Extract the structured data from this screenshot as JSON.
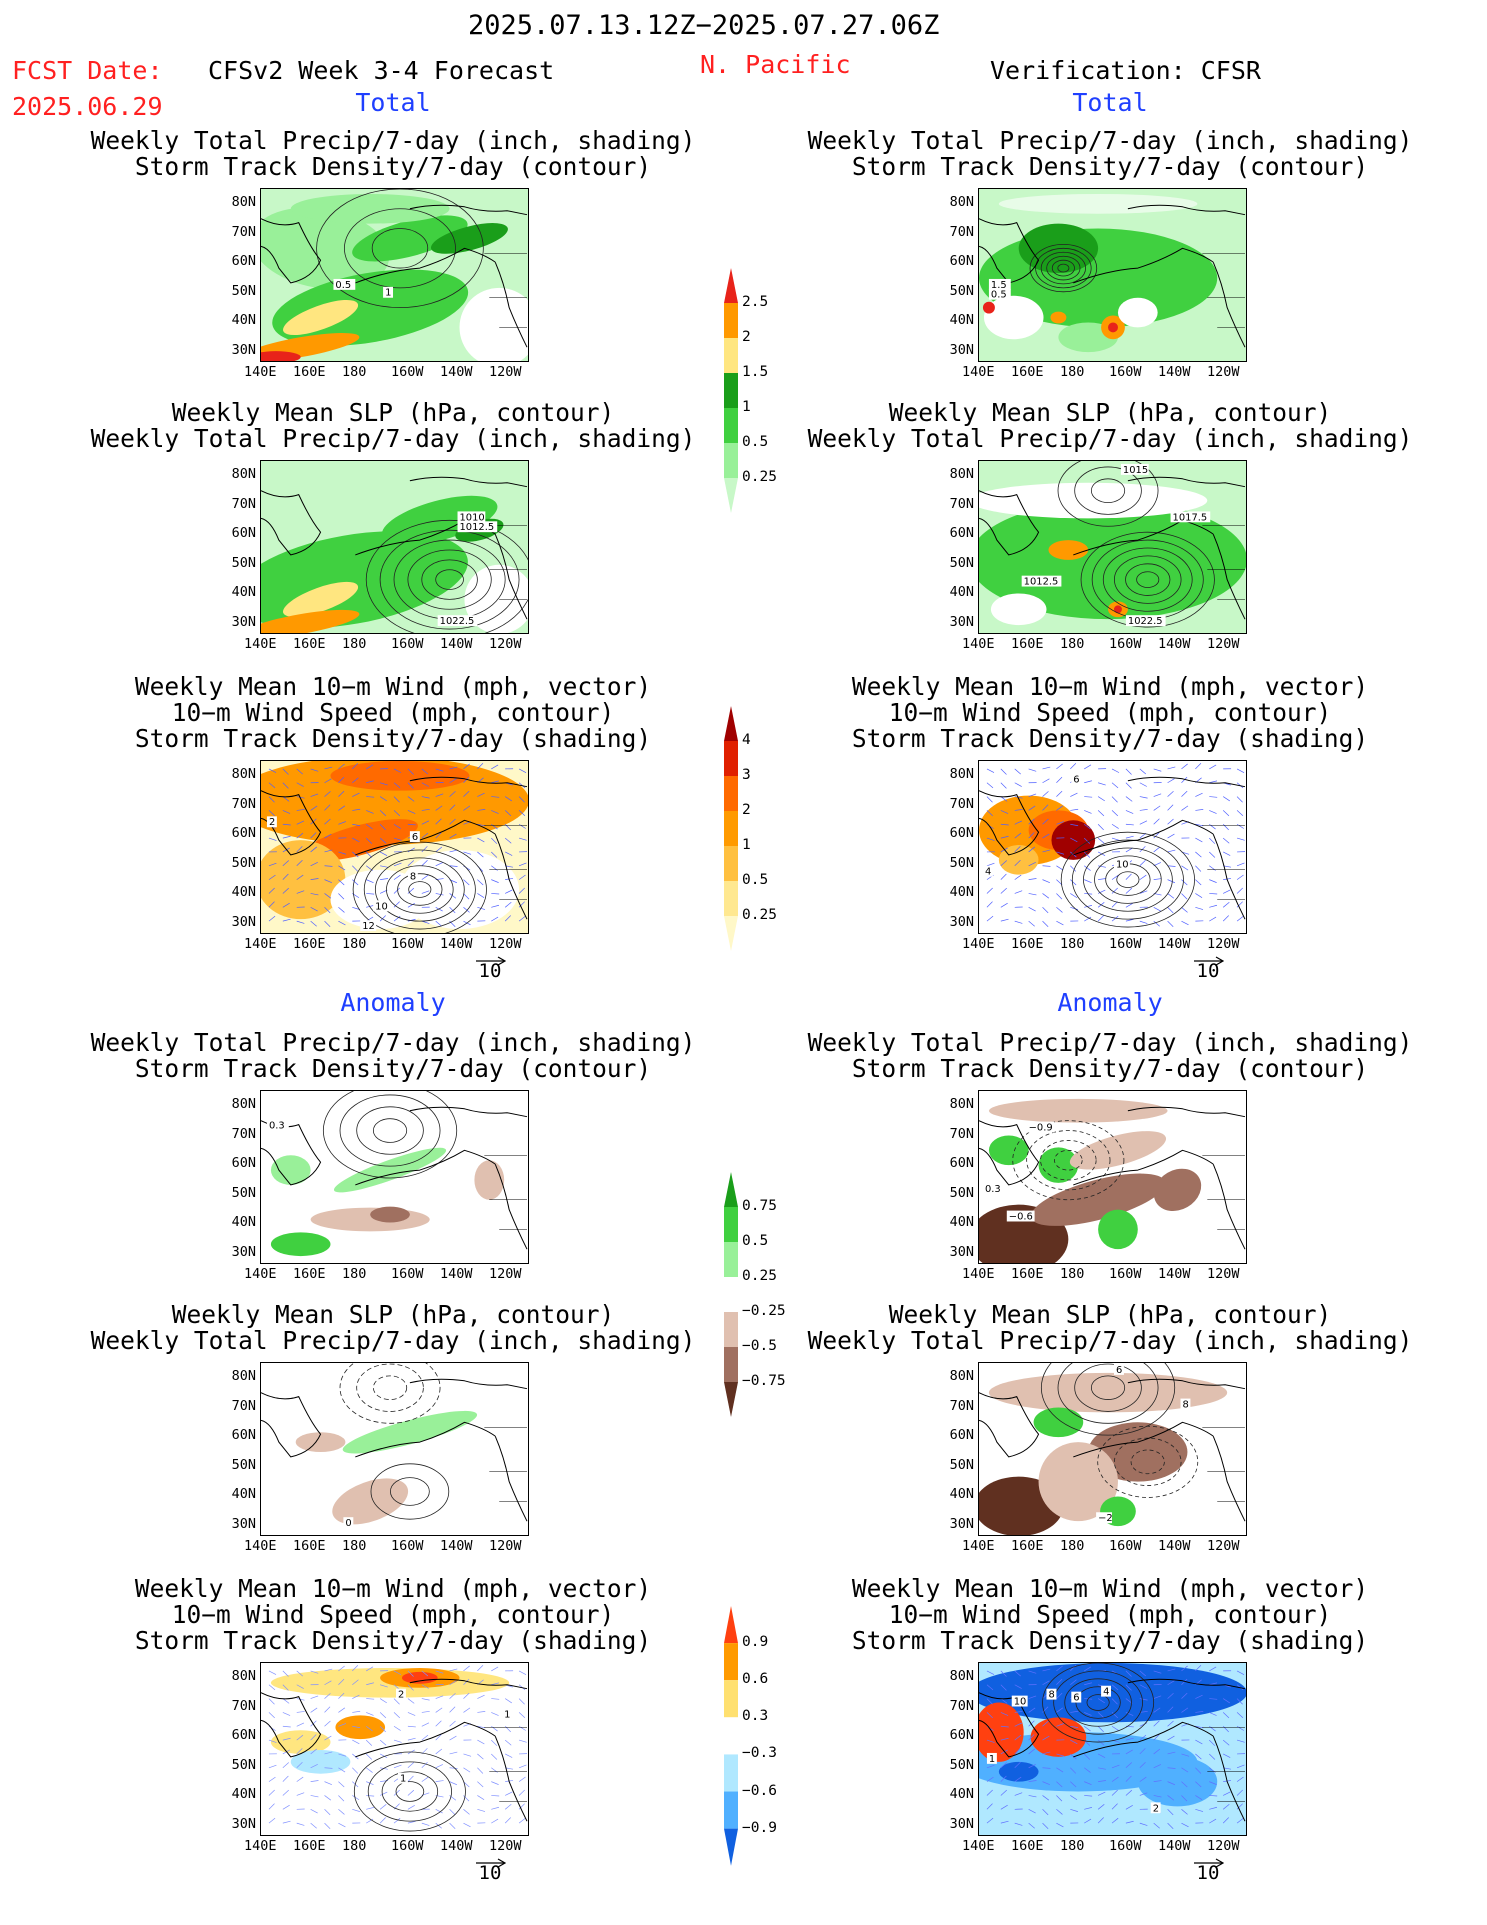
{
  "header": {
    "date_range": "2025.07.13.12Z−2025.07.27.06Z",
    "fcst_label": "FCST Date:",
    "fcst_date": "2025.06.29",
    "model_title": "CFSv2 Week 3-4 Forecast",
    "region": "N. Pacific",
    "verification": "Verification: CFSR"
  },
  "sections": {
    "total": "Total",
    "anomaly": "Anomaly"
  },
  "panel_titles": {
    "precip_storm": [
      "Weekly Total Precip/7-day (inch, shading)",
      "Storm Track Density/7-day (contour)"
    ],
    "slp_precip": [
      "Weekly Mean SLP (hPa, contour)",
      "Weekly Total Precip/7-day (inch, shading)"
    ],
    "wind": [
      "Weekly Mean 10−m Wind (mph, vector)",
      "10−m Wind Speed (mph, contour)",
      "Storm Track Density/7-day (shading)"
    ]
  },
  "axes": {
    "lat_ticks": [
      "80N",
      "70N",
      "60N",
      "50N",
      "40N",
      "30N"
    ],
    "lon_ticks": [
      "140E",
      "160E",
      "180",
      "160W",
      "140W",
      "120W"
    ],
    "vector_ref": "10"
  },
  "colorbars": {
    "precip_total": {
      "ticks": [
        "2.5",
        "2",
        "1.5",
        "1",
        "0.5",
        "0.25"
      ],
      "colors": [
        "#e8231a",
        "#ff9900",
        "#ffe680",
        "#1a9e1a",
        "#40d040",
        "#99f099",
        "#c8f8c8"
      ]
    },
    "storm_total": {
      "ticks": [
        "4",
        "3",
        "2",
        "1",
        "0.5",
        "0.25"
      ],
      "colors": [
        "#a00000",
        "#e02000",
        "#ff6a00",
        "#ff9a00",
        "#ffc040",
        "#ffe890",
        "#fff8c8"
      ]
    },
    "precip_anom": {
      "ticks": [
        "0.75",
        "0.5",
        "0.25",
        "−0.25",
        "−0.5",
        "−0.75"
      ],
      "colors": [
        "#1a9e1a",
        "#40d040",
        "#99f099",
        "#ffffff",
        "#e0c0b0",
        "#a07060",
        "#603020"
      ]
    },
    "storm_anom": {
      "ticks": [
        "0.9",
        "0.6",
        "0.3",
        "−0.3",
        "−0.6",
        "−0.9"
      ],
      "colors": [
        "#ff4010",
        "#ff9a00",
        "#ffe070",
        "#ffffff",
        "#b0e8ff",
        "#50b0ff",
        "#1060e0"
      ]
    }
  },
  "contour_labels": {
    "fcst_precip_storm": [
      "0.5",
      "1"
    ],
    "obs_precip_storm": [
      "1.5",
      "0.5"
    ],
    "fcst_slp": [
      "1010",
      "1012.5",
      "1022.5"
    ],
    "obs_slp": [
      "1015",
      "1017.5",
      "1012.5",
      "1022.5"
    ],
    "fcst_wind": [
      "2",
      "6",
      "8",
      "10",
      "12"
    ],
    "obs_wind": [
      "6",
      "4",
      "10"
    ],
    "fcst_anom_precip": [
      "0.3"
    ],
    "obs_anom_precip": [
      "−0.9",
      "0.3",
      "−0.6"
    ],
    "fcst_anom_slp": [
      "0"
    ],
    "obs_anom_slp": [
      "6",
      "8",
      "−2"
    ],
    "fcst_anom_wind": [
      "2",
      "1",
      "1"
    ],
    "obs_anom_wind": [
      "10",
      "8",
      "6",
      "4",
      "1",
      "2"
    ]
  },
  "map_colors": {
    "green_dark": "#1a9e1a",
    "green": "#40d040",
    "green_light": "#99f099",
    "green_pale": "#c8f8c8",
    "orange": "#ff9900",
    "red": "#e8231a",
    "yellow": "#ffe680",
    "brown_dark": "#603020",
    "brown": "#a07060",
    "brown_light": "#e0c0b0",
    "blue_dark": "#1060e0",
    "blue": "#50b0ff",
    "blue_light": "#b0e8ff"
  }
}
